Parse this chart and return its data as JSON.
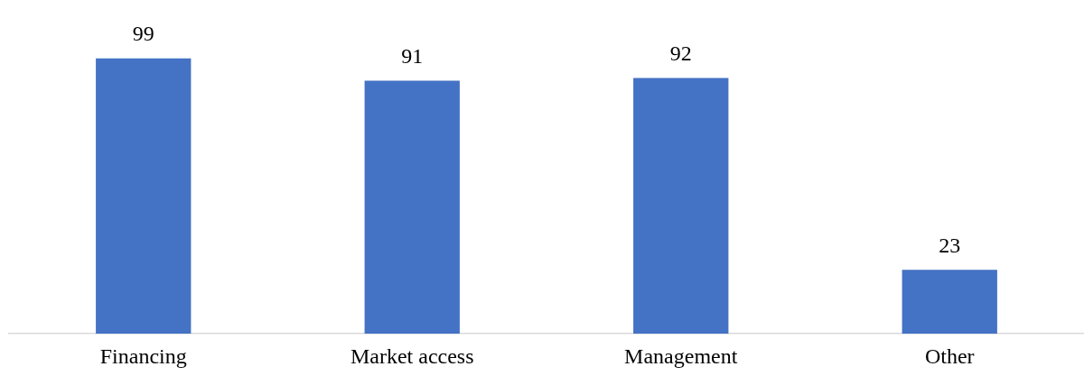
{
  "chart_data": {
    "type": "bar",
    "categories": [
      "Financing",
      "Market access",
      "Management",
      "Other"
    ],
    "values": [
      99,
      91,
      92,
      23
    ],
    "color": "#4472c4",
    "data_labels": true,
    "legend": false
  }
}
